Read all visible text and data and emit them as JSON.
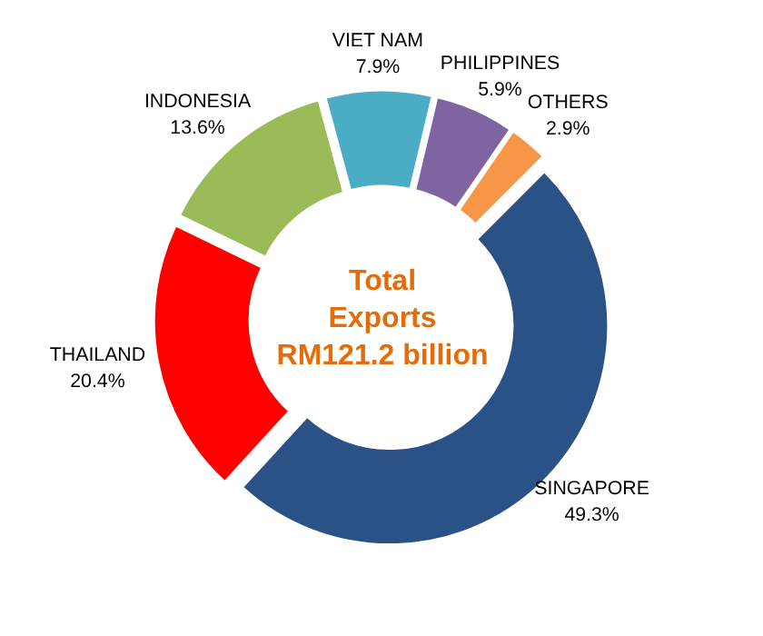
{
  "chart_data": {
    "type": "donut",
    "categories": [
      "SINGAPORE",
      "THAILAND",
      "INDONESIA",
      "VIET NAM",
      "PHILIPPINES",
      "OTHERS"
    ],
    "values": [
      49.3,
      20.4,
      13.6,
      7.9,
      5.9,
      2.9
    ],
    "colors": [
      "#2a5286",
      "#ff0000",
      "#9bbb59",
      "#4bacc6",
      "#8064a2",
      "#f79646"
    ],
    "value_labels": [
      "49.3%",
      "20.4%",
      "13.6%",
      "7.9%",
      "5.9%",
      "2.9%"
    ],
    "annotations": [
      "Total\nExports\nRM121.2 billion"
    ]
  }
}
